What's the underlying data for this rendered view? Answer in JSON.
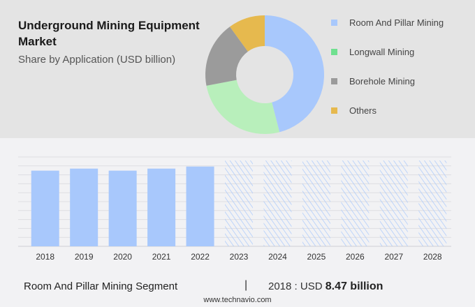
{
  "title": "Underground Mining Equipment Market",
  "subtitle": "Share by Application (USD billion)",
  "chart_data": [
    {
      "type": "pie",
      "donut": true,
      "categories": [
        "Room And Pillar Mining",
        "Longwall Mining",
        "Borehole Mining",
        "Others"
      ],
      "values": [
        46,
        26,
        18,
        10
      ],
      "colors": [
        "#a8c8fc",
        "#b8efbb",
        "#9b9b9b",
        "#e6b94e"
      ],
      "legend_colors": [
        "#a8c8fc",
        "#6fe08f",
        "#9b9b9b",
        "#e6b94e"
      ],
      "legend": "right"
    },
    {
      "type": "bar",
      "categories": [
        "2018",
        "2019",
        "2020",
        "2021",
        "2022",
        "2023",
        "2024",
        "2025",
        "2026",
        "2027",
        "2028"
      ],
      "values": [
        8.47,
        8.7,
        8.47,
        8.7,
        8.93,
        null,
        null,
        null,
        null,
        null,
        null
      ],
      "forecast": [
        false,
        false,
        false,
        false,
        false,
        true,
        true,
        true,
        true,
        true,
        true
      ],
      "ylim": [
        0,
        10
      ],
      "grid": true,
      "color": "#a8c8fc"
    }
  ],
  "footer": {
    "segment": "Room And Pillar Mining Segment",
    "separator": "|",
    "year_label": "2018 : USD ",
    "value": "8.47 billion",
    "url": "www.technavio.com"
  }
}
